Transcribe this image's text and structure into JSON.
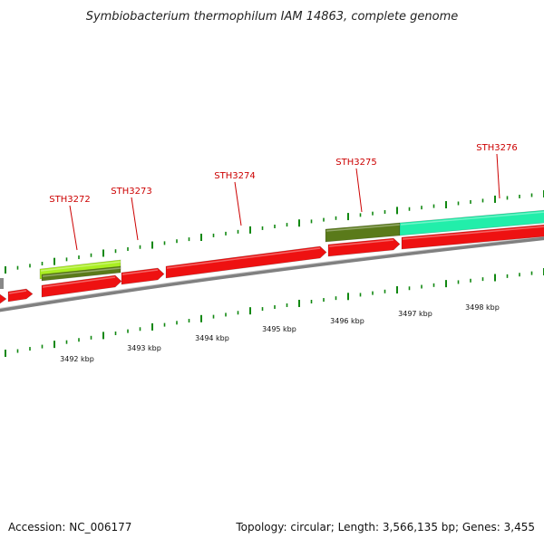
{
  "title": "Symbiobacterium thermophilum IAM 14863, complete genome",
  "footer": {
    "accession": "Accession: NC_006177",
    "summary": "Topology: circular; Length: 3,566,135 bp; Genes: 3,455"
  },
  "colors": {
    "gene_forward": "#ee1111",
    "gene_green": "#5a7a1a",
    "gene_lime": "#aaee22",
    "gene_cyan": "#22eeaa",
    "tick": "#118811",
    "label": "#cc0000",
    "backbone": "#808080"
  },
  "gene_labels": [
    "STH3272",
    "STH3273",
    "STH3274",
    "STH3275",
    "STH3276"
  ],
  "kbp_labels": [
    "3492 kbp",
    "3493 kbp",
    "3494 kbp",
    "3495 kbp",
    "3496 kbp",
    "3497 kbp",
    "3498 kbp"
  ]
}
